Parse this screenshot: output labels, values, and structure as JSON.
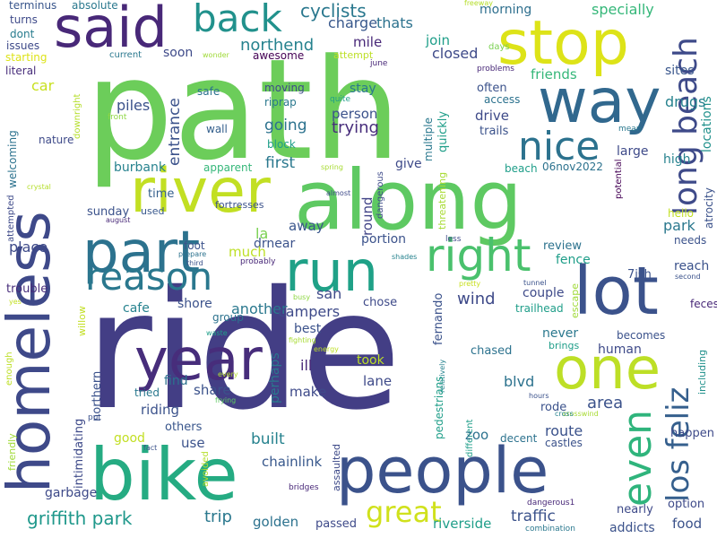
{
  "words": [
    {
      "text": "ride",
      "color": "#433e85"
    },
    {
      "text": "path",
      "color": "#6ccd5a"
    },
    {
      "text": "along",
      "color": "#5ec962"
    },
    {
      "text": "bike",
      "color": "#25ab82"
    },
    {
      "text": "people",
      "color": "#3b528b"
    },
    {
      "text": "homeless",
      "color": "#3e4989"
    },
    {
      "text": "river",
      "color": "#c2df23"
    },
    {
      "text": "stop",
      "color": "#dde318"
    },
    {
      "text": "way",
      "color": "#31688e"
    },
    {
      "text": "said",
      "color": "#482878"
    },
    {
      "text": "part",
      "color": "#2c728e"
    },
    {
      "text": "run",
      "color": "#1fa187"
    },
    {
      "text": "lot",
      "color": "#3b528b"
    },
    {
      "text": "one",
      "color": "#bddf26"
    },
    {
      "text": "year",
      "color": "#472d7b"
    },
    {
      "text": "right",
      "color": "#4ac16d"
    },
    {
      "text": "reason",
      "color": "#2a788e"
    },
    {
      "text": "nice",
      "color": "#2c728e"
    },
    {
      "text": "back",
      "color": "#21918c"
    },
    {
      "text": "long beach",
      "color": "#3e4a89"
    },
    {
      "text": "even",
      "color": "#2fb47c"
    },
    {
      "text": "los feliz",
      "color": "#355f8d"
    },
    {
      "text": "great",
      "color": "#d0e11c"
    },
    {
      "text": "griffith park",
      "color": "#1f988b"
    },
    {
      "text": "cyclists",
      "color": "#2a788e"
    },
    {
      "text": "northend",
      "color": "#26828e"
    },
    {
      "text": "charge",
      "color": "#38588c"
    },
    {
      "text": "thats",
      "color": "#2c728e"
    },
    {
      "text": "join",
      "color": "#1f9e89"
    },
    {
      "text": "closed",
      "color": "#3e4a89"
    },
    {
      "text": "mile",
      "color": "#482878"
    },
    {
      "text": "morning",
      "color": "#2e6f8e"
    },
    {
      "text": "specially",
      "color": "#35b779"
    },
    {
      "text": "turns",
      "color": "#3e4a89"
    },
    {
      "text": "absolute",
      "color": "#2a788e"
    },
    {
      "text": "terminus",
      "color": "#39568c"
    },
    {
      "text": "dont",
      "color": "#287c8e"
    },
    {
      "text": "issues",
      "color": "#3e4a89"
    },
    {
      "text": "starting",
      "color": "#dde318"
    },
    {
      "text": "literal",
      "color": "#472d7b"
    },
    {
      "text": "car",
      "color": "#c8e020"
    },
    {
      "text": "soon",
      "color": "#3e4a89"
    },
    {
      "text": "current",
      "color": "#2a788e"
    },
    {
      "text": "awesome",
      "color": "#440154"
    },
    {
      "text": "attempt",
      "color": "#bddf26"
    },
    {
      "text": "june",
      "color": "#482878"
    },
    {
      "text": "wonder",
      "color": "#a0da39"
    },
    {
      "text": "freeway",
      "color": "#b5de2b"
    },
    {
      "text": "days",
      "color": "#7ad151"
    },
    {
      "text": "friends",
      "color": "#35b779"
    },
    {
      "text": "problems",
      "color": "#482878"
    },
    {
      "text": "sites",
      "color": "#39568c"
    },
    {
      "text": "locations",
      "color": "#21918c"
    },
    {
      "text": "moving",
      "color": "#3e4a89"
    },
    {
      "text": "quite",
      "color": "#1f9e89"
    },
    {
      "text": "stay",
      "color": "#2a788e"
    },
    {
      "text": "often",
      "color": "#3b528b"
    },
    {
      "text": "access",
      "color": "#2c728e"
    },
    {
      "text": "person",
      "color": "#3b528b"
    },
    {
      "text": "trying",
      "color": "#472d7b"
    },
    {
      "text": "drive",
      "color": "#3e4a89"
    },
    {
      "text": "trails",
      "color": "#3b528b"
    },
    {
      "text": "drugs",
      "color": "#26828e"
    },
    {
      "text": "piles",
      "color": "#3b528b"
    },
    {
      "text": "entrance",
      "color": "#3b528b"
    },
    {
      "text": "riprap",
      "color": "#2a788e"
    },
    {
      "text": "safe",
      "color": "#2c728e"
    },
    {
      "text": "front",
      "color": "#8fd744"
    },
    {
      "text": "wall",
      "color": "#35608d"
    },
    {
      "text": "going",
      "color": "#2c728e"
    },
    {
      "text": "block",
      "color": "#1f9e89"
    },
    {
      "text": "quickly",
      "color": "#1f9e89"
    },
    {
      "text": "multiple",
      "color": "#2a788e"
    },
    {
      "text": "mean",
      "color": "#2a788e"
    },
    {
      "text": "large",
      "color": "#3e4a89"
    },
    {
      "text": "atrocity",
      "color": "#3b528b"
    },
    {
      "text": "nature",
      "color": "#3e4a89"
    },
    {
      "text": "welcoming",
      "color": "#2c728e"
    },
    {
      "text": "downright",
      "color": "#b5de2b"
    },
    {
      "text": "burbank",
      "color": "#26828e"
    },
    {
      "text": "apparent",
      "color": "#35b779"
    },
    {
      "text": "first",
      "color": "#2a788e"
    },
    {
      "text": "spring",
      "color": "#a8db34"
    },
    {
      "text": "give",
      "color": "#3e4a89"
    },
    {
      "text": "threatening",
      "color": "#a8db34"
    },
    {
      "text": "beach",
      "color": "#1f9e89"
    },
    {
      "text": "06nov2022",
      "color": "#2c728e"
    },
    {
      "text": "high",
      "color": "#26828e"
    },
    {
      "text": "potential",
      "color": "#440154"
    },
    {
      "text": "crystal",
      "color": "#b5de2b"
    },
    {
      "text": "attempted",
      "color": "#3e4a89"
    },
    {
      "text": "time",
      "color": "#35608d"
    },
    {
      "text": "fortresses",
      "color": "#3b528b"
    },
    {
      "text": "used",
      "color": "#38588c"
    },
    {
      "text": "almost",
      "color": "#3e4a89"
    },
    {
      "text": "dangerous",
      "color": "#3e4a89"
    },
    {
      "text": "round",
      "color": "#414487"
    },
    {
      "text": "hello",
      "color": "#c2df23"
    },
    {
      "text": "park",
      "color": "#2a788e"
    },
    {
      "text": "needs",
      "color": "#3b528b"
    },
    {
      "text": "sunday",
      "color": "#3b528b"
    },
    {
      "text": "august",
      "color": "#482878"
    },
    {
      "text": "away",
      "color": "#39568c"
    },
    {
      "text": "la",
      "color": "#7ad151"
    },
    {
      "text": "drnear",
      "color": "#3b528b"
    },
    {
      "text": "portion",
      "color": "#3b528b"
    },
    {
      "text": "review",
      "color": "#2c728e"
    },
    {
      "text": "fence",
      "color": "#1f9e89"
    },
    {
      "text": "less",
      "color": "#3e4a89"
    },
    {
      "text": "place",
      "color": "#3e4a89"
    },
    {
      "text": "foot",
      "color": "#3b528b"
    },
    {
      "text": "much",
      "color": "#bddf26"
    },
    {
      "text": "prepare",
      "color": "#2c728e"
    },
    {
      "text": "third",
      "color": "#3b528b"
    },
    {
      "text": "probably",
      "color": "#482878"
    },
    {
      "text": "shades",
      "color": "#26828e"
    },
    {
      "text": "reach",
      "color": "#3b528b"
    },
    {
      "text": "7ish",
      "color": "#3b528b"
    },
    {
      "text": "second",
      "color": "#3b528b"
    },
    {
      "text": "trouble",
      "color": "#472d7b"
    },
    {
      "text": "yes",
      "color": "#c2df23"
    },
    {
      "text": "san",
      "color": "#3e4a89"
    },
    {
      "text": "fernando",
      "color": "#3b528b"
    },
    {
      "text": "wind",
      "color": "#3e4a89"
    },
    {
      "text": "couple",
      "color": "#3e4a89"
    },
    {
      "text": "tunnel",
      "color": "#3b528b"
    },
    {
      "text": "trailhead",
      "color": "#1f9e89"
    },
    {
      "text": "pretty",
      "color": "#c8e020"
    },
    {
      "text": "escape",
      "color": "#a0da39"
    },
    {
      "text": "feces",
      "color": "#482878"
    },
    {
      "text": "willow",
      "color": "#c2df23"
    },
    {
      "text": "cafe",
      "color": "#26828e"
    },
    {
      "text": "shore",
      "color": "#3b528b"
    },
    {
      "text": "another",
      "color": "#2a788e"
    },
    {
      "text": "campers",
      "color": "#3e4a89"
    },
    {
      "text": "chose",
      "color": "#3e4a89"
    },
    {
      "text": "busy",
      "color": "#8fd744"
    },
    {
      "text": "group",
      "color": "#2c728e"
    },
    {
      "text": "never",
      "color": "#2a788e"
    },
    {
      "text": "human",
      "color": "#3e4a89"
    },
    {
      "text": "becomes",
      "color": "#3b528b"
    },
    {
      "text": "northern",
      "color": "#3b528b"
    },
    {
      "text": "best",
      "color": "#3b528b"
    },
    {
      "text": "perhaps",
      "color": "#2a788e"
    },
    {
      "text": "relatively",
      "color": "#26828e"
    },
    {
      "text": "brings",
      "color": "#1f9e89"
    },
    {
      "text": "including",
      "color": "#21918c"
    },
    {
      "text": "waste",
      "color": "#1f9e89"
    },
    {
      "text": "fighting",
      "color": "#a8db34"
    },
    {
      "text": "ill",
      "color": "#482878"
    },
    {
      "text": "energy",
      "color": "#bddf26"
    },
    {
      "text": "chased",
      "color": "#2c728e"
    },
    {
      "text": "enough",
      "color": "#bddf26"
    },
    {
      "text": "every",
      "color": "#b5de2b"
    },
    {
      "text": "took",
      "color": "#bddf26"
    },
    {
      "text": "find",
      "color": "#2c728e"
    },
    {
      "text": "share",
      "color": "#3b528b"
    },
    {
      "text": "make",
      "color": "#3e4a89"
    },
    {
      "text": "lane",
      "color": "#3e4a89"
    },
    {
      "text": "blvd",
      "color": "#2c728e"
    },
    {
      "text": "tried",
      "color": "#2a788e"
    },
    {
      "text": "frying",
      "color": "#5ec962"
    },
    {
      "text": "riding",
      "color": "#3b528b"
    },
    {
      "text": "area",
      "color": "#3b528b"
    },
    {
      "text": "rode",
      "color": "#3b528b"
    },
    {
      "text": "hours",
      "color": "#3b528b"
    },
    {
      "text": "pedestrians",
      "color": "#1f9e89"
    },
    {
      "text": "different",
      "color": "#1f9e89"
    },
    {
      "text": "crosswind",
      "color": "#a8db34"
    },
    {
      "text": "cross",
      "color": "#26828e"
    },
    {
      "text": "friendly",
      "color": "#a0da39"
    },
    {
      "text": "put",
      "color": "#3b528b"
    },
    {
      "text": "intimidating",
      "color": "#3e4a89"
    },
    {
      "text": "others",
      "color": "#39568c"
    },
    {
      "text": "good",
      "color": "#c2df23"
    },
    {
      "text": "fact",
      "color": "#3b528b"
    },
    {
      "text": "zoo",
      "color": "#2c728e"
    },
    {
      "text": "decent",
      "color": "#2c728e"
    },
    {
      "text": "route",
      "color": "#3b528b"
    },
    {
      "text": "castles",
      "color": "#3b528b"
    },
    {
      "text": "happen",
      "color": "#3e4a89"
    },
    {
      "text": "use",
      "color": "#3b528b"
    },
    {
      "text": "built",
      "color": "#26828e"
    },
    {
      "text": "avoided",
      "color": "#b5de2b"
    },
    {
      "text": "chainlink",
      "color": "#38588c"
    },
    {
      "text": "assaulted",
      "color": "#3e4a89"
    },
    {
      "text": "garbage",
      "color": "#3e4a89"
    },
    {
      "text": "bridges",
      "color": "#482878"
    },
    {
      "text": "riverside",
      "color": "#1f9e89"
    },
    {
      "text": "traffic",
      "color": "#3b528b"
    },
    {
      "text": "dangerous1",
      "color": "#482878"
    },
    {
      "text": "nearly",
      "color": "#3e4a89"
    },
    {
      "text": "option",
      "color": "#3e4a89"
    },
    {
      "text": "trip",
      "color": "#2a788e"
    },
    {
      "text": "golden",
      "color": "#2c728e"
    },
    {
      "text": "passed",
      "color": "#3e4a89"
    },
    {
      "text": "combination",
      "color": "#2a788e"
    },
    {
      "text": "addicts",
      "color": "#3b528b"
    },
    {
      "text": "food",
      "color": "#3b528b"
    }
  ]
}
